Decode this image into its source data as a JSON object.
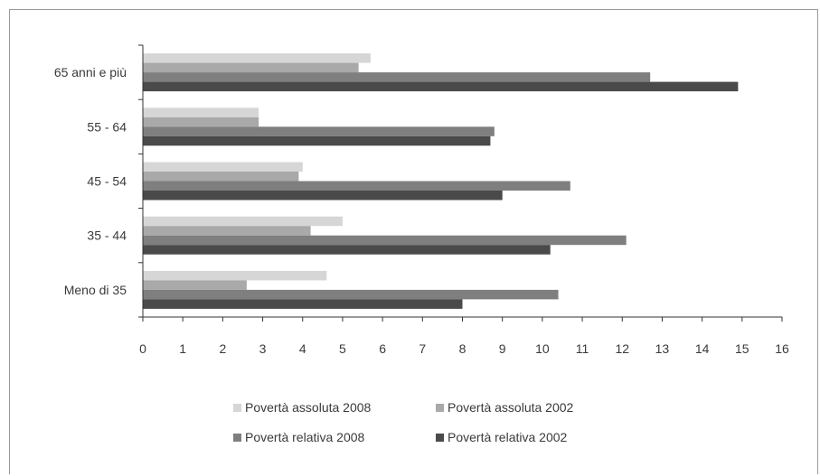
{
  "chart_data": {
    "type": "bar",
    "orientation": "horizontal",
    "title": "",
    "xlabel": "",
    "ylabel": "",
    "categories": [
      "65 anni e più",
      "55 - 64",
      "45 - 54",
      "35 - 44",
      "Meno di 35"
    ],
    "xlim": [
      0,
      16
    ],
    "xticks": [
      "0",
      "1",
      "2",
      "3",
      "4",
      "5",
      "6",
      "7",
      "8",
      "9",
      "10",
      "11",
      "12",
      "13",
      "14",
      "15",
      "16"
    ],
    "grid": false,
    "legend_position": "bottom",
    "series": [
      {
        "name": "Povertà assoluta 2008",
        "color": "#d6d6d6",
        "values": [
          5.7,
          2.9,
          4.0,
          5.0,
          4.6
        ]
      },
      {
        "name": "Povertà assoluta 2002",
        "color": "#a9a9a9",
        "values": [
          5.4,
          2.9,
          3.9,
          4.2,
          2.6
        ]
      },
      {
        "name": "Povertà relativa 2008",
        "color": "#7f7f7f",
        "values": [
          12.7,
          8.8,
          10.7,
          12.1,
          10.4
        ]
      },
      {
        "name": "Povertà relativa 2002",
        "color": "#4a4a4a",
        "values": [
          14.9,
          8.7,
          9.0,
          10.2,
          8.0
        ]
      }
    ]
  }
}
